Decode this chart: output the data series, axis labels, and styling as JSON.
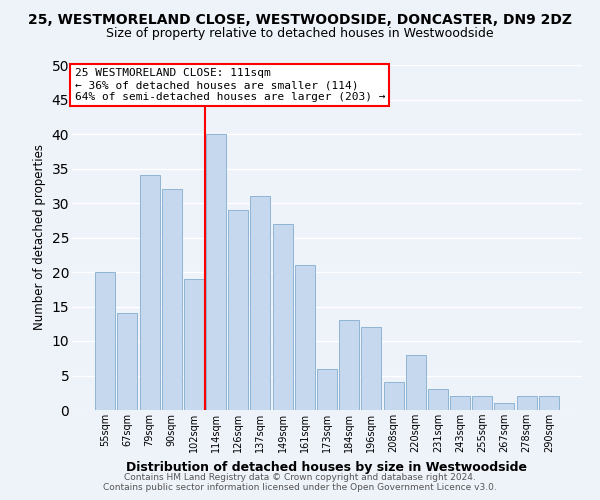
{
  "title": "25, WESTMORELAND CLOSE, WESTWOODSIDE, DONCASTER, DN9 2DZ",
  "subtitle": "Size of property relative to detached houses in Westwoodside",
  "xlabel": "Distribution of detached houses by size in Westwoodside",
  "ylabel": "Number of detached properties",
  "footer_line1": "Contains HM Land Registry data © Crown copyright and database right 2024.",
  "footer_line2": "Contains public sector information licensed under the Open Government Licence v3.0.",
  "bar_labels": [
    "55sqm",
    "67sqm",
    "79sqm",
    "90sqm",
    "102sqm",
    "114sqm",
    "126sqm",
    "137sqm",
    "149sqm",
    "161sqm",
    "173sqm",
    "184sqm",
    "196sqm",
    "208sqm",
    "220sqm",
    "231sqm",
    "243sqm",
    "255sqm",
    "267sqm",
    "278sqm",
    "290sqm"
  ],
  "bar_values": [
    20,
    14,
    34,
    32,
    19,
    40,
    29,
    31,
    27,
    21,
    6,
    13,
    12,
    4,
    8,
    3,
    2,
    2,
    1,
    2,
    2
  ],
  "bar_color": "#c5d8ee",
  "bar_edge_color": "#8fb4d4",
  "vline_x_index": 5,
  "vline_color": "red",
  "annotation_title": "25 WESTMORELAND CLOSE: 111sqm",
  "annotation_line1": "← 36% of detached houses are smaller (114)",
  "annotation_line2": "64% of semi-detached houses are larger (203) →",
  "annotation_box_color": "white",
  "annotation_box_edge": "red",
  "ylim": [
    0,
    50
  ],
  "yticks": [
    0,
    5,
    10,
    15,
    20,
    25,
    30,
    35,
    40,
    45,
    50
  ],
  "background_color": "#eef2f9",
  "grid_color": "white",
  "title_fontsize": 10,
  "subtitle_fontsize": 9
}
